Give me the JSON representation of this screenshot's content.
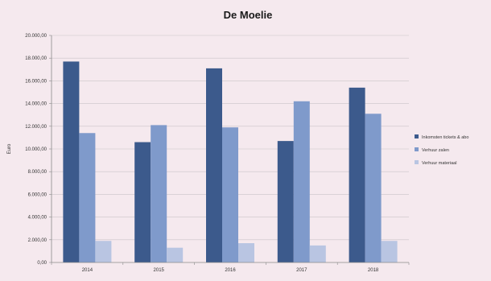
{
  "chart_data": {
    "type": "bar",
    "title": "De Moelie",
    "xlabel": "",
    "ylabel": "Euro",
    "categories": [
      "2014",
      "2015",
      "2016",
      "2017",
      "2018"
    ],
    "y_tick_labels": [
      "0,00",
      "2.000,00",
      "4.000,00",
      "6.000,00",
      "8.000,00",
      "10.000,00",
      "12.000,00",
      "14.000,00",
      "16.000,00",
      "18.000,00",
      "20.000,00"
    ],
    "ylim": [
      0,
      20000
    ],
    "y_tick_step": 2000,
    "grid": true,
    "legend_position": "right",
    "series": [
      {
        "name": "Inkomsten tickets & abo",
        "color": "#3c5a8c",
        "values": [
          17700,
          10600,
          17100,
          10700,
          15400
        ]
      },
      {
        "name": "Verhuur zalen",
        "color": "#7f9acb",
        "values": [
          11400,
          12100,
          11900,
          14200,
          13100
        ]
      },
      {
        "name": "Verhuur materiaal",
        "color": "#b9c5e2",
        "values": [
          1900,
          1300,
          1700,
          1500,
          1900
        ]
      }
    ]
  }
}
